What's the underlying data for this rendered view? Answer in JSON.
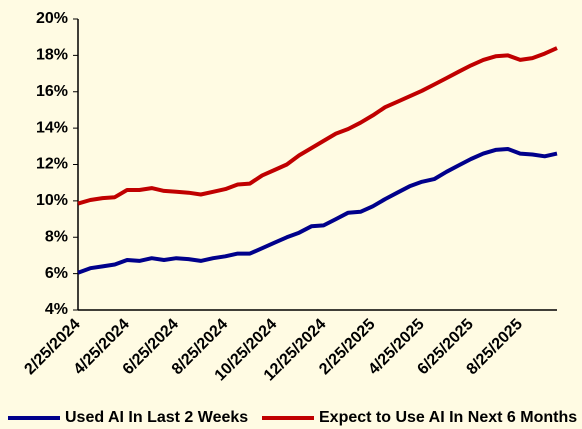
{
  "chart_data": {
    "type": "line",
    "categories": [
      "2/25/2024",
      null,
      null,
      null,
      "4/25/2024",
      null,
      null,
      null,
      "6/25/2024",
      null,
      null,
      null,
      "8/25/2024",
      null,
      null,
      null,
      "10/25/2024",
      null,
      null,
      null,
      "12/25/2024",
      null,
      null,
      null,
      "2/25/2025",
      null,
      null,
      null,
      "4/25/2025",
      null,
      null,
      null,
      "6/25/2025",
      null,
      null,
      null,
      "8/25/2025",
      null,
      null,
      null
    ],
    "series": [
      {
        "name": "Used AI In Last 2 Weeks",
        "color": "#00008b",
        "values": [
          6.05,
          6.3,
          6.4,
          6.5,
          6.75,
          6.7,
          6.85,
          6.75,
          6.85,
          6.8,
          6.7,
          6.85,
          6.95,
          7.1,
          7.1,
          7.4,
          7.7,
          8.0,
          8.25,
          8.6,
          8.65,
          9.0,
          9.35,
          9.4,
          9.7,
          10.1,
          10.45,
          10.8,
          11.05,
          11.2,
          11.6,
          11.95,
          12.3,
          12.6,
          12.8,
          12.85,
          12.6,
          12.55,
          12.45,
          12.6
        ]
      },
      {
        "name": "Expect to Use AI In Next 6 Months",
        "color": "#c00000",
        "values": [
          9.85,
          10.05,
          10.15,
          10.2,
          10.6,
          10.6,
          10.7,
          10.55,
          10.5,
          10.45,
          10.35,
          10.5,
          10.65,
          10.9,
          10.95,
          11.4,
          11.7,
          12.0,
          12.5,
          12.9,
          13.3,
          13.7,
          13.95,
          14.3,
          14.7,
          15.15,
          15.45,
          15.75,
          16.05,
          16.4,
          16.75,
          17.1,
          17.45,
          17.75,
          17.95,
          18.0,
          17.75,
          17.85,
          18.1,
          18.4
        ]
      }
    ],
    "ylim": [
      4,
      20
    ],
    "yticks": [
      {
        "value": 4,
        "label": "4%"
      },
      {
        "value": 6,
        "label": "6%"
      },
      {
        "value": 8,
        "label": "8%"
      },
      {
        "value": 10,
        "label": "10%"
      },
      {
        "value": 12,
        "label": "12%"
      },
      {
        "value": 14,
        "label": "14%"
      },
      {
        "value": 16,
        "label": "16%"
      },
      {
        "value": 18,
        "label": "18%"
      },
      {
        "value": 20,
        "label": "20%"
      }
    ],
    "grid": false
  }
}
